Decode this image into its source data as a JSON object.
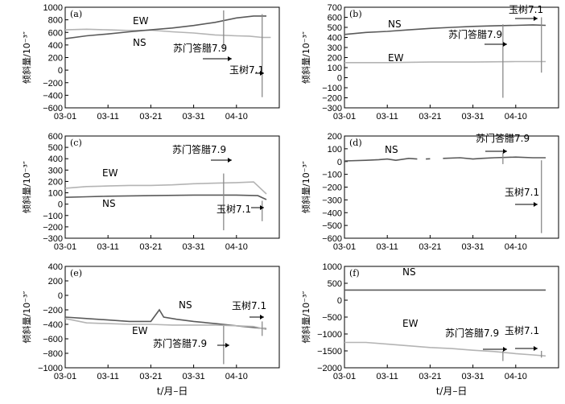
{
  "chart_data": [
    {
      "type": "line",
      "panel": "(a)",
      "ylabel": "倾斜量/10⁻³″",
      "ylim": [
        -600,
        1000
      ],
      "yticks": [
        1000,
        800,
        600,
        400,
        200,
        0,
        -200,
        -400,
        -600
      ],
      "xticks": [
        "03-01",
        "03-11",
        "03-21",
        "03-31",
        "04-10"
      ],
      "series": [
        {
          "name": "EW",
          "color": "#b4b4b4",
          "points": [
            [
              0,
              640
            ],
            [
              5,
              650
            ],
            [
              10,
              640
            ],
            [
              15,
              630
            ],
            [
              20,
              635
            ],
            [
              25,
              610
            ],
            [
              30,
              590
            ],
            [
              35,
              560
            ],
            [
              40,
              545
            ],
            [
              43,
              540
            ],
            [
              46,
              520
            ],
            [
              48,
              520
            ]
          ]
        },
        {
          "name": "NS",
          "color": "#5a5a5a",
          "points": [
            [
              0,
              500
            ],
            [
              5,
              545
            ],
            [
              10,
              575
            ],
            [
              15,
              610
            ],
            [
              20,
              640
            ],
            [
              25,
              670
            ],
            [
              30,
              710
            ],
            [
              35,
              760
            ],
            [
              40,
              830
            ],
            [
              44,
              860
            ],
            [
              47,
              860
            ]
          ]
        }
      ],
      "events": [
        {
          "label": "苏门答腊7.9",
          "day": 37,
          "low": 350,
          "high": 950
        },
        {
          "label": "玉树7.1",
          "day": 46,
          "low": -430,
          "high": 890
        }
      ]
    },
    {
      "type": "line",
      "panel": "(b)",
      "ylabel": "倾斜量/10⁻³″",
      "ylim": [
        -300,
        700
      ],
      "yticks": [
        700,
        600,
        500,
        400,
        300,
        200,
        100,
        0,
        -100,
        -200,
        -300
      ],
      "xticks": [
        "03-01",
        "03-11",
        "03-21",
        "03-31",
        "04-10"
      ],
      "series": [
        {
          "name": "NS",
          "color": "#5a5a5a",
          "points": [
            [
              0,
              430
            ],
            [
              5,
              450
            ],
            [
              10,
              460
            ],
            [
              15,
              475
            ],
            [
              20,
              490
            ],
            [
              25,
              500
            ],
            [
              30,
              510
            ],
            [
              35,
              515
            ],
            [
              40,
              520
            ],
            [
              44,
              525
            ],
            [
              47,
              520
            ]
          ]
        },
        {
          "name": "EW",
          "color": "#b4b4b4",
          "points": [
            [
              0,
              150
            ],
            [
              10,
              150
            ],
            [
              20,
              155
            ],
            [
              30,
              155
            ],
            [
              40,
              160
            ],
            [
              47,
              160
            ]
          ]
        }
      ],
      "events": [
        {
          "label": "苏门答腊7.9",
          "day": 37,
          "low": -200,
          "high": 530
        },
        {
          "label": "玉树7.1",
          "day": 46,
          "low": 50,
          "high": 600
        }
      ]
    },
    {
      "type": "line",
      "panel": "(c)",
      "ylabel": "倾斜量/10⁻³″",
      "ylim": [
        -300,
        600
      ],
      "yticks": [
        600,
        500,
        400,
        300,
        200,
        100,
        0,
        -100,
        -200,
        -300
      ],
      "xticks": [
        "03-01",
        "03-11",
        "03-21",
        "03-31",
        "04-10"
      ],
      "series": [
        {
          "name": "EW",
          "color": "#b4b4b4",
          "points": [
            [
              0,
              140
            ],
            [
              5,
              155
            ],
            [
              10,
              160
            ],
            [
              15,
              165
            ],
            [
              20,
              165
            ],
            [
              25,
              170
            ],
            [
              30,
              180
            ],
            [
              35,
              185
            ],
            [
              40,
              190
            ],
            [
              44,
              195
            ],
            [
              47,
              90
            ]
          ]
        },
        {
          "name": "NS",
          "color": "#5a5a5a",
          "points": [
            [
              0,
              60
            ],
            [
              5,
              65
            ],
            [
              10,
              70
            ],
            [
              20,
              75
            ],
            [
              30,
              80
            ],
            [
              40,
              80
            ],
            [
              45,
              75
            ],
            [
              47,
              40
            ]
          ]
        }
      ],
      "events": [
        {
          "label": "苏门答腊7.9",
          "day": 37,
          "low": -230,
          "high": 270
        },
        {
          "label": "玉树7.1",
          "day": 46,
          "low": -150,
          "high": 30
        }
      ]
    },
    {
      "type": "line",
      "panel": "(d)",
      "ylabel": "倾斜量/10⁻³″",
      "ylim": [
        -600,
        200
      ],
      "yticks": [
        200,
        100,
        0,
        -100,
        -200,
        -300,
        -400,
        -500,
        -600
      ],
      "xticks": [
        "03-01",
        "03-11",
        "03-21",
        "03-31",
        "04-10"
      ],
      "series": [
        {
          "name": "NS",
          "color": "#5a5a5a",
          "points": [
            [
              0,
              5
            ],
            [
              5,
              10
            ],
            [
              8,
              15
            ],
            [
              10,
              20
            ],
            [
              12,
              10
            ],
            [
              15,
              25
            ],
            [
              17,
              20
            ],
            [
              18,
              null
            ],
            [
              19,
              20
            ],
            [
              20,
              22
            ],
            [
              22,
              null
            ],
            [
              23,
              25
            ],
            [
              27,
              30
            ],
            [
              30,
              20
            ],
            [
              32,
              25
            ],
            [
              35,
              30
            ],
            [
              40,
              35
            ],
            [
              44,
              30
            ],
            [
              47,
              30
            ]
          ]
        }
      ],
      "events": [
        {
          "label": "苏门答腊7.9",
          "day": 37,
          "low": -20,
          "high": 70
        },
        {
          "label": "玉树7.1",
          "day": 46,
          "low": -560,
          "high": 10
        }
      ]
    },
    {
      "type": "line",
      "panel": "(e)",
      "ylabel": "倾斜量/10⁻³″",
      "ylim": [
        -1000,
        400
      ],
      "yticks": [
        400,
        200,
        0,
        -200,
        -400,
        -600,
        -800,
        -1000
      ],
      "xticks": [
        "03-01",
        "03-11",
        "03-21",
        "03-31",
        "04-10"
      ],
      "series": [
        {
          "name": "NS",
          "color": "#5a5a5a",
          "points": [
            [
              0,
              -300
            ],
            [
              5,
              -320
            ],
            [
              10,
              -340
            ],
            [
              15,
              -360
            ],
            [
              20,
              -360
            ],
            [
              22,
              -200
            ],
            [
              23,
              -300
            ],
            [
              26,
              -330
            ],
            [
              30,
              -360
            ],
            [
              35,
              -390
            ],
            [
              40,
              -420
            ],
            [
              45,
              -450
            ],
            [
              47,
              -460
            ]
          ]
        },
        {
          "name": "EW",
          "color": "#b4b4b4",
          "points": [
            [
              0,
              -320
            ],
            [
              5,
              -380
            ],
            [
              10,
              -390
            ],
            [
              15,
              -400
            ],
            [
              20,
              -400
            ],
            [
              25,
              -410
            ],
            [
              30,
              -410
            ],
            [
              35,
              -410
            ],
            [
              40,
              -420
            ],
            [
              44,
              -430
            ],
            [
              47,
              -470
            ]
          ]
        }
      ],
      "events": [
        {
          "label": "苏门答腊7.9",
          "day": 37,
          "low": -950,
          "high": -420
        },
        {
          "label": "玉树7.1",
          "day": 46,
          "low": -560,
          "high": -360
        }
      ]
    },
    {
      "type": "line",
      "panel": "(f)",
      "ylabel": "倾斜量/10⁻³″",
      "ylim": [
        -2000,
        1000
      ],
      "yticks": [
        1000,
        500,
        0,
        -500,
        -1000,
        -1500,
        -2000
      ],
      "xticks": [
        "03-01",
        "03-11",
        "03-21",
        "03-31",
        "04-10"
      ],
      "series": [
        {
          "name": "NS",
          "color": "#5a5a5a",
          "points": [
            [
              0,
              300
            ],
            [
              10,
              300
            ],
            [
              20,
              300
            ],
            [
              30,
              300
            ],
            [
              40,
              300
            ],
            [
              47,
              300
            ]
          ]
        },
        {
          "name": "EW",
          "color": "#b4b4b4",
          "points": [
            [
              0,
              -1250
            ],
            [
              5,
              -1250
            ],
            [
              10,
              -1300
            ],
            [
              15,
              -1350
            ],
            [
              20,
              -1400
            ],
            [
              25,
              -1430
            ],
            [
              30,
              -1480
            ],
            [
              35,
              -1520
            ],
            [
              40,
              -1580
            ],
            [
              44,
              -1620
            ],
            [
              47,
              -1650
            ]
          ]
        }
      ],
      "events": [
        {
          "label": "苏门答腊7.9",
          "day": 37,
          "low": -1800,
          "high": -1500
        },
        {
          "label": "玉树7.1",
          "day": 46,
          "low": -1700,
          "high": -1500
        }
      ]
    }
  ],
  "xlabel": "t/月–日"
}
